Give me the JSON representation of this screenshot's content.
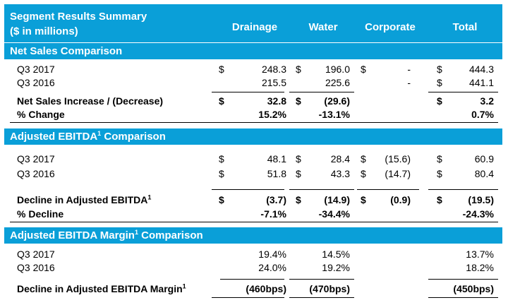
{
  "header": {
    "title": "Segment Results Summary",
    "subtitle": "($ in millions)",
    "columns": [
      "Drainage",
      "Water",
      "Corporate",
      "Total"
    ]
  },
  "sections": {
    "net_sales": {
      "title": "Net Sales Comparison",
      "q3_2017": {
        "label": "Q3 2017",
        "drainage": "248.3",
        "water": "196.0",
        "corporate": "-",
        "total": "444.3"
      },
      "q3_2016": {
        "label": "Q3 2016",
        "drainage": "215.5",
        "water": "225.6",
        "corporate": "-",
        "total": "441.1"
      },
      "increase": {
        "label": "Net Sales Increase / (Decrease)",
        "drainage": "32.8",
        "water": "(29.6)",
        "total": "3.2"
      },
      "pct": {
        "label": "% Change",
        "drainage": "15.2%",
        "water": "-13.1%",
        "total": "0.7%"
      }
    },
    "ebitda": {
      "title": "Adjusted EBITDA",
      "title_sup": "1",
      "title_suffix": " Comparison",
      "q3_2017": {
        "label": "Q3 2017",
        "drainage": "48.1",
        "water": "28.4",
        "corporate": "(15.6)",
        "total": "60.9"
      },
      "q3_2016": {
        "label": "Q3 2016",
        "drainage": "51.8",
        "water": "43.3",
        "corporate": "(14.7)",
        "total": "80.4"
      },
      "decline": {
        "label": "Decline in Adjusted EBITDA",
        "sup": "1",
        "drainage": "(3.7)",
        "water": "(14.9)",
        "corporate": "(0.9)",
        "total": "(19.5)"
      },
      "pct": {
        "label": "% Decline",
        "drainage": "-7.1%",
        "water": "-34.4%",
        "total": "-24.3%"
      }
    },
    "margin": {
      "title": "Adjusted EBITDA Margin",
      "title_sup": "1",
      "title_suffix": " Comparison",
      "q3_2017": {
        "label": "Q3 2017",
        "drainage": "19.4%",
        "water": "14.5%",
        "total": "13.7%"
      },
      "q3_2016": {
        "label": "Q3 2016",
        "drainage": "24.0%",
        "water": "19.2%",
        "total": "18.2%"
      },
      "decline": {
        "label": "Decline in Adjusted EBITDA Margin",
        "sup": "1",
        "drainage": "(460bps)",
        "water": "(470bps)",
        "total": "(450bps)"
      }
    }
  },
  "currency_symbol": "$"
}
